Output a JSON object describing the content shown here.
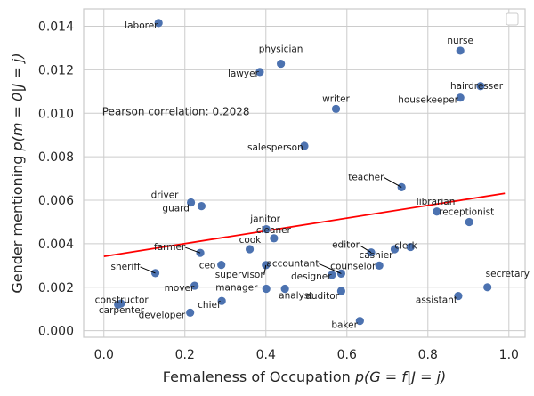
{
  "chart_data": {
    "type": "scatter",
    "xlabel": "Femaleness of Occupation p(G = f|J = j)",
    "ylabel": "Gender mentioning p(m = 0|J = j)",
    "xlim": [
      -0.05,
      1.04
    ],
    "ylim": [
      -0.0003,
      0.0148
    ],
    "x_ticks": [
      0.0,
      0.2,
      0.4,
      0.6,
      0.8,
      1.0
    ],
    "x_tick_labels": [
      "0.0",
      "0.2",
      "0.4",
      "0.6",
      "0.8",
      "1.0"
    ],
    "y_ticks": [
      0.0,
      0.002,
      0.004,
      0.006,
      0.008,
      0.01,
      0.012,
      0.014
    ],
    "y_tick_labels": [
      "0.000",
      "0.002",
      "0.004",
      "0.006",
      "0.008",
      "0.010",
      "0.012",
      "0.014"
    ],
    "grid": true,
    "point_color": "#4c72b0",
    "line_color": "#ff0000",
    "annotation": "Pearson correlation: 0.2028",
    "trend_line": {
      "x": [
        0.0,
        0.99
      ],
      "y": [
        0.00342,
        0.00632
      ]
    },
    "points": [
      {
        "label": "laborer",
        "x": 0.135,
        "y": 0.01415
      },
      {
        "label": "physician",
        "x": 0.437,
        "y": 0.01228
      },
      {
        "label": "lawyer",
        "x": 0.385,
        "y": 0.0119
      },
      {
        "label": "nurse",
        "x": 0.88,
        "y": 0.01288
      },
      {
        "label": "hairdresser",
        "x": 0.93,
        "y": 0.01125
      },
      {
        "label": "housekeeper",
        "x": 0.88,
        "y": 0.01072
      },
      {
        "label": "writer",
        "x": 0.573,
        "y": 0.0102
      },
      {
        "label": "salesperson",
        "x": 0.495,
        "y": 0.0085
      },
      {
        "label": "teacher",
        "x": 0.735,
        "y": 0.0066
      },
      {
        "label": "driver",
        "x": 0.215,
        "y": 0.0059
      },
      {
        "label": "guard",
        "x": 0.241,
        "y": 0.00573
      },
      {
        "label": "librarian",
        "x": 0.822,
        "y": 0.00548
      },
      {
        "label": "receptionist",
        "x": 0.902,
        "y": 0.005
      },
      {
        "label": "janitor",
        "x": 0.401,
        "y": 0.00467
      },
      {
        "label": "cleaner",
        "x": 0.42,
        "y": 0.00425
      },
      {
        "label": "cook",
        "x": 0.36,
        "y": 0.00375
      },
      {
        "label": "farmer",
        "x": 0.238,
        "y": 0.00358
      },
      {
        "label": "editor",
        "x": 0.66,
        "y": 0.0036
      },
      {
        "label": "clerk",
        "x": 0.757,
        "y": 0.00385
      },
      {
        "label": "cashier",
        "x": 0.718,
        "y": 0.00375
      },
      {
        "label": "sheriff",
        "x": 0.127,
        "y": 0.00265
      },
      {
        "label": "ceo",
        "x": 0.29,
        "y": 0.00303
      },
      {
        "label": "supervisor",
        "x": 0.4,
        "y": 0.00302
      },
      {
        "label": "accountant",
        "x": 0.586,
        "y": 0.00263
      },
      {
        "label": "counselor",
        "x": 0.68,
        "y": 0.003
      },
      {
        "label": "designer",
        "x": 0.563,
        "y": 0.00257
      },
      {
        "label": "mover",
        "x": 0.224,
        "y": 0.00207
      },
      {
        "label": "manager",
        "x": 0.401,
        "y": 0.00193
      },
      {
        "label": "analyst",
        "x": 0.447,
        "y": 0.00193
      },
      {
        "label": "auditor",
        "x": 0.586,
        "y": 0.00183
      },
      {
        "label": "assistant",
        "x": 0.875,
        "y": 0.0016
      },
      {
        "label": "secretary",
        "x": 0.947,
        "y": 0.002
      },
      {
        "label": "constructor",
        "x": 0.035,
        "y": 0.0012
      },
      {
        "label": "carpenter",
        "x": 0.042,
        "y": 0.00125
      },
      {
        "label": "chief",
        "x": 0.291,
        "y": 0.00137
      },
      {
        "label": "developer",
        "x": 0.213,
        "y": 0.00083
      },
      {
        "label": "baker",
        "x": 0.632,
        "y": 0.00045
      }
    ]
  }
}
